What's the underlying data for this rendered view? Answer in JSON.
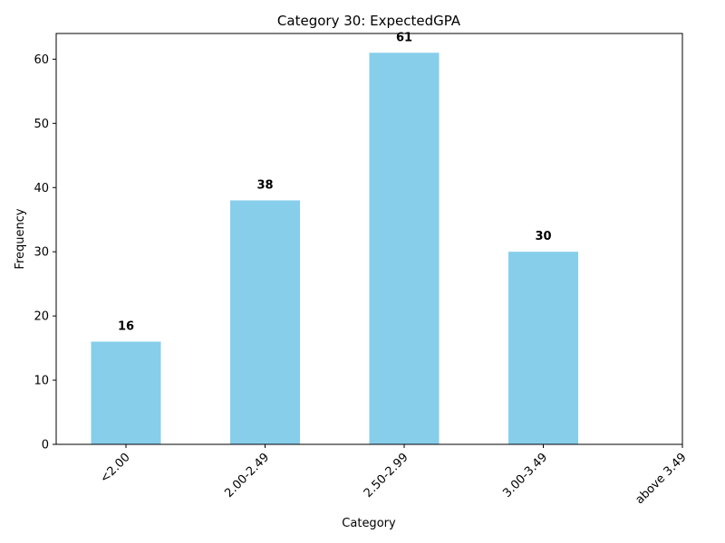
{
  "chart_data": {
    "type": "bar",
    "title": "Category 30: ExpectedGPA",
    "xlabel": "Category",
    "ylabel": "Frequency",
    "categories": [
      "<2.00",
      "2.00-2.49",
      "2.50-2.99",
      "3.00-3.49",
      "above 3.49"
    ],
    "values": [
      16,
      38,
      61,
      30,
      0
    ],
    "data_labels": [
      "16",
      "38",
      "61",
      "30",
      null
    ],
    "ylim": [
      0,
      64
    ],
    "yticks": [
      0,
      10,
      20,
      30,
      40,
      50,
      60
    ],
    "bar_color": "#87CEEB",
    "grid": false,
    "legend": "none"
  }
}
